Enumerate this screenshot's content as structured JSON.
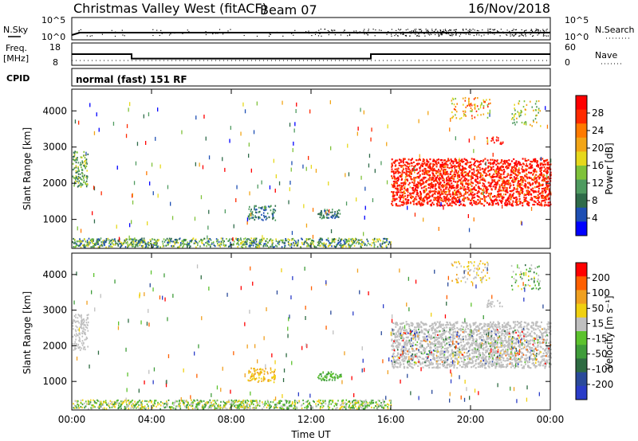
{
  "header": {
    "station": "Christmas Valley West (fitACF)",
    "beam": "Beam 07",
    "date": "16/Nov/2018"
  },
  "status_panels": {
    "nsky_label": "N.Sky",
    "nsky_ticks": [
      "10^5",
      "10^0"
    ],
    "nsearch_label": "N.Search",
    "nsearch_ticks": [
      "10^5",
      "10^0"
    ],
    "freq_label": "Freq.",
    "freq_unit": "[MHz]",
    "freq_ticks": [
      "18",
      "8"
    ],
    "nave_label": "Nave",
    "nave_ticks": [
      "60",
      "0"
    ],
    "cpid_label": "CPID",
    "cpid_value": "normal (fast) 151 RF"
  },
  "colors": {
    "power": [
      "#0000ff",
      "#1e4fb4",
      "#2f6b4a",
      "#4f9b60",
      "#7fc23a",
      "#e6d81c",
      "#f2a516",
      "#ff7a00",
      "#ff2a00",
      "#ff0000"
    ],
    "velocity": [
      "#2a3cc8",
      "#2a4a9a",
      "#2e6b42",
      "#3f9c3a",
      "#5cc22d",
      "#bfbfbf",
      "#f0d010",
      "#f0a020",
      "#ff6000",
      "#ff0000"
    ]
  },
  "chart_data": [
    {
      "type": "heatmap",
      "panel": "power",
      "xlabel": "Time UT",
      "ylabel": "Slant Range [km]",
      "x_ticks": [
        "00:00",
        "04:00",
        "08:00",
        "12:00",
        "16:00",
        "20:00",
        "00:00"
      ],
      "xlim_hours": [
        0,
        24
      ],
      "y_ticks": [
        1000,
        2000,
        3000,
        4000
      ],
      "ylim": [
        200,
        4600
      ],
      "colorbar_label": "Power [dB]",
      "colorbar_ticks": [
        "28",
        "24",
        "20",
        "16",
        "12",
        "8",
        "4"
      ],
      "clim": [
        0,
        32
      ]
    },
    {
      "type": "heatmap",
      "panel": "velocity",
      "xlabel": "Time UT",
      "ylabel": "Slant Range [km]",
      "x_ticks": [
        "00:00",
        "04:00",
        "08:00",
        "12:00",
        "16:00",
        "20:00",
        "00:00"
      ],
      "xlim_hours": [
        0,
        24
      ],
      "y_ticks": [
        1000,
        2000,
        3000,
        4000
      ],
      "ylim": [
        200,
        4600
      ],
      "colorbar_label": "Velocity [m s⁻¹]",
      "colorbar_ticks": [
        "200",
        "100",
        "50",
        "15",
        "-15",
        "-50",
        "-100",
        "-200"
      ],
      "clim": [
        -250,
        250
      ]
    }
  ],
  "freq_series": {
    "segments": [
      {
        "start_h": 0,
        "end_h": 3,
        "value": 13
      },
      {
        "start_h": 3,
        "end_h": 15,
        "value": 11
      },
      {
        "start_h": 15,
        "end_h": 24,
        "value": 13
      }
    ]
  }
}
